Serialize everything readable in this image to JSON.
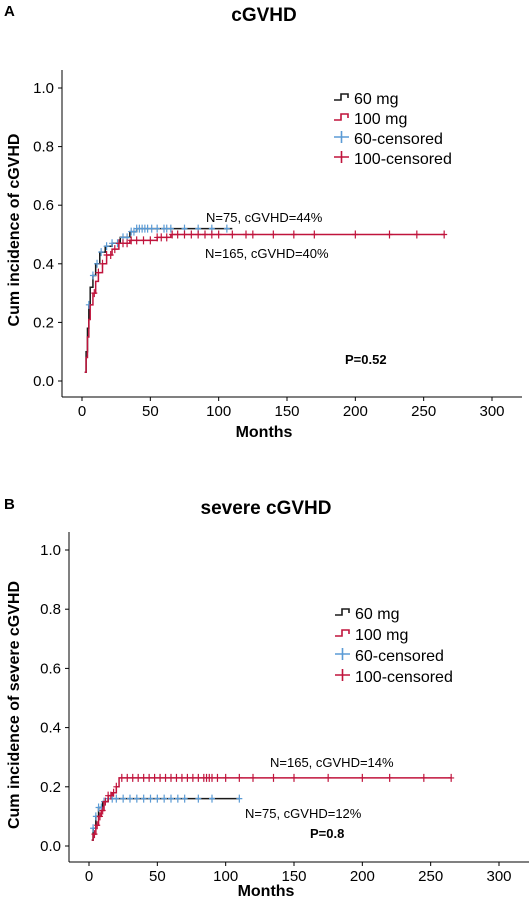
{
  "chart_data": [
    {
      "type": "line",
      "panel": "A",
      "title": "cGVHD",
      "xlabel": "Months",
      "ylabel": "Cum incidence of cGVHD",
      "xlim": [
        0,
        300
      ],
      "ylim": [
        0,
        1.0
      ],
      "xticks": [
        0,
        50,
        100,
        150,
        200,
        250,
        300
      ],
      "yticks": [
        "0.0",
        "0.2",
        "0.4",
        "0.6",
        "0.8",
        "1.0"
      ],
      "legend_position": "top-right",
      "legend": [
        "60 mg",
        "100 mg",
        "60-censored",
        "100-censored"
      ],
      "annotations": [
        "N=75, cGVHD=44%",
        "N=165, cGVHD=40%"
      ],
      "p_value": "P=0.52",
      "series": [
        {
          "name": "60 mg",
          "color": "#1a1a1a",
          "censor_color": "#5b9bd5",
          "steps": [
            [
              2,
              0.03
            ],
            [
              3,
              0.1
            ],
            [
              4,
              0.18
            ],
            [
              5,
              0.26
            ],
            [
              6,
              0.32
            ],
            [
              8,
              0.36
            ],
            [
              10,
              0.4
            ],
            [
              13,
              0.44
            ],
            [
              17,
              0.46
            ],
            [
              22,
              0.47
            ],
            [
              28,
              0.49
            ],
            [
              35,
              0.51
            ],
            [
              40,
              0.52
            ],
            [
              110,
              0.52
            ]
          ],
          "censored": [
            5,
            8,
            11,
            14,
            18,
            22,
            26,
            30,
            33,
            36,
            38,
            40,
            42,
            44,
            46,
            48,
            51,
            55,
            60,
            62,
            65,
            75,
            85,
            95,
            106
          ]
        },
        {
          "name": "100 mg",
          "color": "#c0143c",
          "censor_color": "#c0143c",
          "steps": [
            [
              2,
              0.03
            ],
            [
              3,
              0.08
            ],
            [
              4,
              0.15
            ],
            [
              5,
              0.21
            ],
            [
              6,
              0.26
            ],
            [
              8,
              0.3
            ],
            [
              10,
              0.34
            ],
            [
              12,
              0.37
            ],
            [
              15,
              0.4
            ],
            [
              18,
              0.43
            ],
            [
              22,
              0.45
            ],
            [
              27,
              0.47
            ],
            [
              35,
              0.48
            ],
            [
              55,
              0.49
            ],
            [
              65,
              0.5
            ],
            [
              265,
              0.5
            ]
          ],
          "censored": [
            9,
            12,
            15,
            18,
            21,
            24,
            27,
            30,
            33,
            36,
            40,
            45,
            50,
            55,
            58,
            62,
            66,
            70,
            75,
            80,
            85,
            90,
            95,
            100,
            110,
            120,
            125,
            140,
            155,
            170,
            200,
            225,
            245,
            265
          ]
        }
      ]
    },
    {
      "type": "line",
      "panel": "B",
      "title": "severe cGVHD",
      "xlabel": "Months",
      "ylabel": "Cum incidence of severe cGVHD",
      "xlim": [
        0,
        300
      ],
      "ylim": [
        0,
        1.0
      ],
      "xticks": [
        0,
        50,
        100,
        150,
        200,
        250,
        300
      ],
      "yticks": [
        "0.0",
        "0.2",
        "0.4",
        "0.6",
        "0.8",
        "1.0"
      ],
      "legend_position": "right",
      "legend": [
        "60 mg",
        "100 mg",
        "60-censored",
        "100-censored"
      ],
      "annotations": [
        "N=165, cGVHD=14%",
        "N=75, cGVHD=12%"
      ],
      "p_value": "P=0.8",
      "series": [
        {
          "name": "60 mg",
          "color": "#1a1a1a",
          "censor_color": "#5b9bd5",
          "steps": [
            [
              2,
              0.02
            ],
            [
              3,
              0.06
            ],
            [
              5,
              0.1
            ],
            [
              7,
              0.13
            ],
            [
              10,
              0.15
            ],
            [
              14,
              0.16
            ],
            [
              110,
              0.16
            ]
          ],
          "censored": [
            3,
            5,
            7,
            9,
            11,
            14,
            17,
            20,
            25,
            30,
            35,
            40,
            45,
            50,
            55,
            60,
            65,
            70,
            80,
            90,
            110
          ]
        },
        {
          "name": "100 mg",
          "color": "#c0143c",
          "censor_color": "#c0143c",
          "steps": [
            [
              2,
              0.02
            ],
            [
              3,
              0.04
            ],
            [
              5,
              0.07
            ],
            [
              7,
              0.1
            ],
            [
              9,
              0.12
            ],
            [
              11,
              0.15
            ],
            [
              14,
              0.17
            ],
            [
              17,
              0.18
            ],
            [
              20,
              0.2
            ],
            [
              22,
              0.23
            ],
            [
              265,
              0.23
            ]
          ],
          "censored": [
            4,
            6,
            8,
            10,
            12,
            14,
            16,
            18,
            20,
            24,
            28,
            32,
            36,
            40,
            44,
            48,
            52,
            56,
            60,
            64,
            68,
            72,
            76,
            80,
            84,
            86,
            88,
            90,
            94,
            100,
            110,
            120,
            135,
            150,
            175,
            200,
            220,
            245,
            265
          ]
        }
      ]
    }
  ]
}
